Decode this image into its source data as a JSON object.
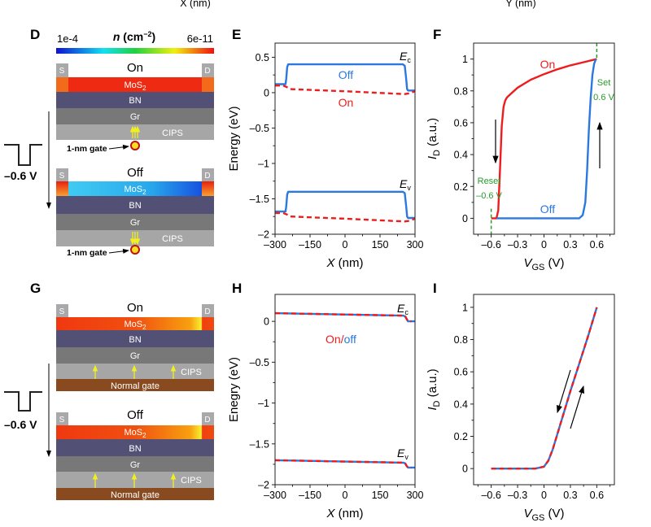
{
  "top_cut": {
    "xlabel_left": "X (nm)",
    "xlabel_right": "Y (nm)"
  },
  "panel_d": {
    "label": "D",
    "colorbar": {
      "var": "n",
      "unit": "(cm",
      "exp": "−2",
      "close": ")",
      "min_label": "1e-4",
      "max_label": "6e-11"
    },
    "states": [
      "On",
      "Off"
    ],
    "source": "S",
    "drain": "D",
    "layers": {
      "mos": "MoS",
      "mos_sub": "2",
      "bn": "BN",
      "gr": "Gr",
      "cips": "CIPS"
    },
    "gate_label": "1-nm gate",
    "pulse_label": "–0.6 V"
  },
  "panel_g": {
    "label": "G",
    "states": [
      "On",
      "Off"
    ],
    "source": "S",
    "drain": "D",
    "layers": {
      "mos": "MoS",
      "mos_sub": "2",
      "bn": "BN",
      "gr": "Gr",
      "cips": "CIPS",
      "gate": "Normal gate"
    },
    "pulse_label": "–0.6 V"
  },
  "colors": {
    "on": "#ee1c1c",
    "off": "#2a78e0",
    "annotation": "#2a9a2a"
  },
  "chart_data": [
    {
      "id": "E",
      "label": "E",
      "type": "line",
      "xlabel": {
        "var": "X",
        "rest": " (nm)"
      },
      "ylabel": "Energy (eV)",
      "xlim": [
        -300,
        300
      ],
      "ylim": [
        -2,
        0.7
      ],
      "xticks": [
        -300,
        -150,
        0,
        150,
        300
      ],
      "xtick_labels": [
        "–300",
        "–150",
        "0",
        "150",
        "300"
      ],
      "yticks": [
        0.5,
        0,
        -0.5,
        -1,
        -1.5,
        -2
      ],
      "ytick_labels": [
        "0.5",
        "0",
        "–0.5",
        "–1",
        "–1.5",
        "–2"
      ],
      "annotations": {
        "ec": "E",
        "ec_sub": "c",
        "ev": "E",
        "ev_sub": "v",
        "off": "Off",
        "on": "On"
      },
      "series": [
        {
          "name": "Off",
          "band": "Ec",
          "style": "solid",
          "color": "#2a78e0",
          "x": [
            -300,
            -255,
            -252,
            -248,
            -244,
            248,
            256,
            262,
            266,
            270,
            300
          ],
          "y": [
            0.12,
            0.12,
            0.2,
            0.36,
            0.4,
            0.4,
            0.38,
            0.2,
            0.05,
            0.03,
            0.03
          ]
        },
        {
          "name": "Off",
          "band": "Ev",
          "style": "solid",
          "color": "#2a78e0",
          "x": [
            -300,
            -255,
            -252,
            -248,
            -244,
            248,
            256,
            262,
            266,
            270,
            300
          ],
          "y": [
            -1.68,
            -1.68,
            -1.6,
            -1.44,
            -1.4,
            -1.4,
            -1.42,
            -1.6,
            -1.75,
            -1.77,
            -1.77
          ]
        },
        {
          "name": "On",
          "band": "Ec",
          "style": "dashed",
          "color": "#ee1c1c",
          "x": [
            -300,
            -265,
            -250,
            -235,
            0,
            255,
            275,
            300
          ],
          "y": [
            0.1,
            0.1,
            0.08,
            0.05,
            0.02,
            -0.02,
            -0.01,
            0.02
          ]
        },
        {
          "name": "On",
          "band": "Ev",
          "style": "dashed",
          "color": "#ee1c1c",
          "x": [
            -300,
            -265,
            -250,
            -235,
            0,
            255,
            275,
            300
          ],
          "y": [
            -1.7,
            -1.7,
            -1.72,
            -1.75,
            -1.78,
            -1.82,
            -1.81,
            -1.78
          ]
        }
      ]
    },
    {
      "id": "F",
      "label": "F",
      "type": "line",
      "xlabel": {
        "var": "V",
        "sub": "GS",
        "rest": " (V)"
      },
      "ylabel": {
        "var": "I",
        "sub": "D",
        "rest": " (a.u.)"
      },
      "xlim": [
        -0.8,
        0.8
      ],
      "ylim": [
        -0.1,
        1.1
      ],
      "xticks": [
        -0.6,
        -0.3,
        0,
        0.3,
        0.6
      ],
      "xtick_labels": [
        "–0.6",
        "–0.3",
        "0",
        "0.3",
        "0.6"
      ],
      "yticks": [
        0,
        0.2,
        0.4,
        0.6,
        0.8,
        1
      ],
      "ytick_labels": [
        "0",
        "0.2",
        "0.4",
        "0.6",
        "0.8",
        "1"
      ],
      "annotations": {
        "on": "On",
        "off": "Off",
        "set": "Set",
        "set_v": "0.6 V",
        "reset": "Reset",
        "reset_v": "–0.6 V"
      },
      "markers": [
        {
          "x": 0.6,
          "label": "Set"
        },
        {
          "x": -0.6,
          "label": "Reset"
        }
      ],
      "series": [
        {
          "name": "On",
          "style": "solid",
          "color": "#ee1c1c",
          "x": [
            -0.6,
            -0.54,
            -0.52,
            -0.5,
            -0.48,
            -0.46,
            -0.44,
            -0.42,
            -0.3,
            -0.15,
            0,
            0.15,
            0.3,
            0.45,
            0.6
          ],
          "y": [
            0,
            0,
            0.05,
            0.3,
            0.58,
            0.7,
            0.74,
            0.76,
            0.82,
            0.87,
            0.905,
            0.935,
            0.96,
            0.98,
            1.0
          ]
        },
        {
          "name": "Off",
          "style": "solid",
          "color": "#2a78e0",
          "x": [
            -0.54,
            0.4,
            0.44,
            0.47,
            0.49,
            0.51,
            0.53,
            0.55,
            0.57,
            0.59
          ],
          "y": [
            0,
            0,
            0.02,
            0.1,
            0.3,
            0.55,
            0.75,
            0.9,
            0.97,
            1.0
          ]
        }
      ]
    },
    {
      "id": "H",
      "label": "H",
      "type": "line",
      "xlabel": {
        "var": "X",
        "rest": " (nm)"
      },
      "ylabel": "Enegry (eV)",
      "xlim": [
        -300,
        300
      ],
      "ylim": [
        -2,
        0.33
      ],
      "xticks": [
        -300,
        -150,
        0,
        150,
        300
      ],
      "xtick_labels": [
        "–300",
        "–150",
        "0",
        "150",
        "300"
      ],
      "yticks": [
        0,
        -0.5,
        -1,
        -1.5,
        -2
      ],
      "ytick_labels": [
        "0",
        "–0.5",
        "–1",
        "–1.5",
        "–2"
      ],
      "annotations": {
        "ec": "E",
        "ec_sub": "c",
        "ev": "E",
        "ev_sub": "v",
        "on": "On",
        "slash": "/",
        "off": "off"
      },
      "series": [
        {
          "name": "Off",
          "band": "Ec",
          "style": "solid",
          "color": "#2a78e0",
          "x": [
            -300,
            250,
            258,
            264,
            270,
            300
          ],
          "y": [
            0.1,
            0.07,
            0.06,
            0.03,
            0.0,
            0.0
          ]
        },
        {
          "name": "Off",
          "band": "Ev",
          "style": "solid",
          "color": "#2a78e0",
          "x": [
            -300,
            250,
            258,
            264,
            270,
            300
          ],
          "y": [
            -1.7,
            -1.73,
            -1.74,
            -1.77,
            -1.79,
            -1.79
          ]
        },
        {
          "name": "On",
          "band": "Ec",
          "style": "dashed",
          "color": "#ee1c1c",
          "x": [
            -300,
            250,
            258,
            264,
            270,
            285
          ],
          "y": [
            0.1,
            0.07,
            0.06,
            0.03,
            0.0,
            0.0
          ]
        },
        {
          "name": "On",
          "band": "Ev",
          "style": "dashed",
          "color": "#ee1c1c",
          "x": [
            -300,
            250,
            258,
            264,
            270,
            285
          ],
          "y": [
            -1.7,
            -1.73,
            -1.74,
            -1.77,
            -1.79,
            -1.79
          ]
        }
      ]
    },
    {
      "id": "I",
      "label": "I",
      "type": "line",
      "xlabel": {
        "var": "V",
        "sub": "GS",
        "rest": " (V)"
      },
      "ylabel": {
        "var": "I",
        "sub": "D",
        "rest": " (a.u.)"
      },
      "xlim": [
        -0.8,
        0.8
      ],
      "ylim": [
        -0.1,
        1.08
      ],
      "xticks": [
        -0.6,
        -0.3,
        0,
        0.3,
        0.6
      ],
      "xtick_labels": [
        "–0.6",
        "–0.3",
        "0",
        "0.3",
        "0.6"
      ],
      "yticks": [
        0,
        0.2,
        0.4,
        0.6,
        0.8,
        1
      ],
      "ytick_labels": [
        "0",
        "0.2",
        "0.4",
        "0.6",
        "0.8",
        "1"
      ],
      "series": [
        {
          "name": "Off",
          "style": "solid",
          "color": "#2a78e0",
          "x": [
            -0.6,
            -0.1,
            0,
            0.05,
            0.1,
            0.2,
            0.3,
            0.4,
            0.5,
            0.6
          ],
          "y": [
            0,
            0,
            0.012,
            0.05,
            0.12,
            0.3,
            0.48,
            0.65,
            0.82,
            1.0
          ]
        },
        {
          "name": "On",
          "style": "dashed",
          "color": "#ee1c1c",
          "x": [
            -0.6,
            -0.1,
            0,
            0.05,
            0.1,
            0.2,
            0.3,
            0.4,
            0.5,
            0.6
          ],
          "y": [
            0,
            0,
            0.012,
            0.05,
            0.12,
            0.3,
            0.48,
            0.65,
            0.82,
            1.0
          ]
        }
      ]
    }
  ]
}
